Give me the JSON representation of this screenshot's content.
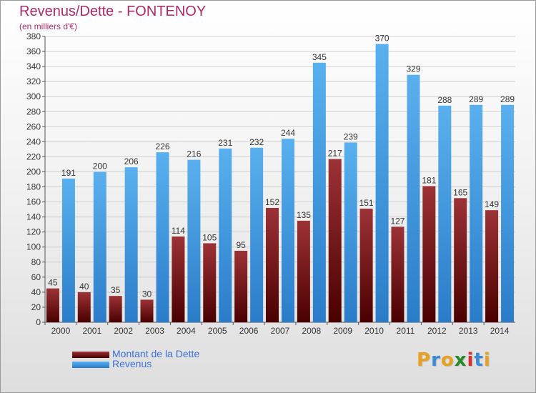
{
  "chart_data": {
    "type": "bar",
    "title": "Revenus/Dette - FONTENOY",
    "subtitle": "(en milliers d'€)",
    "categories": [
      "2000",
      "2001",
      "2002",
      "2003",
      "2004",
      "2005",
      "2006",
      "2007",
      "2008",
      "2009",
      "2010",
      "2011",
      "2012",
      "2013",
      "2014"
    ],
    "series": [
      {
        "name": "Montant de la Dette",
        "color": "#7a1518",
        "values": [
          45,
          40,
          35,
          30,
          114,
          105,
          95,
          152,
          135,
          217,
          151,
          127,
          181,
          165,
          149
        ]
      },
      {
        "name": "Revenus",
        "color": "#4a9ee0",
        "values": [
          191,
          200,
          206,
          226,
          216,
          231,
          232,
          244,
          345,
          239,
          370,
          329,
          288,
          289,
          289
        ]
      }
    ],
    "ylim": [
      0,
      380
    ],
    "ytick_step": 20,
    "grid": true,
    "legend_position": "bottom-left"
  },
  "logo": {
    "letters": [
      "P",
      "r",
      "o",
      "x",
      "i",
      "t",
      "i"
    ],
    "colors": [
      "#e8a020",
      "#3a8ad8",
      "#e8a020",
      "#2a8a2a",
      "#d83030",
      "#3a8ad8",
      "#e8a020"
    ]
  }
}
